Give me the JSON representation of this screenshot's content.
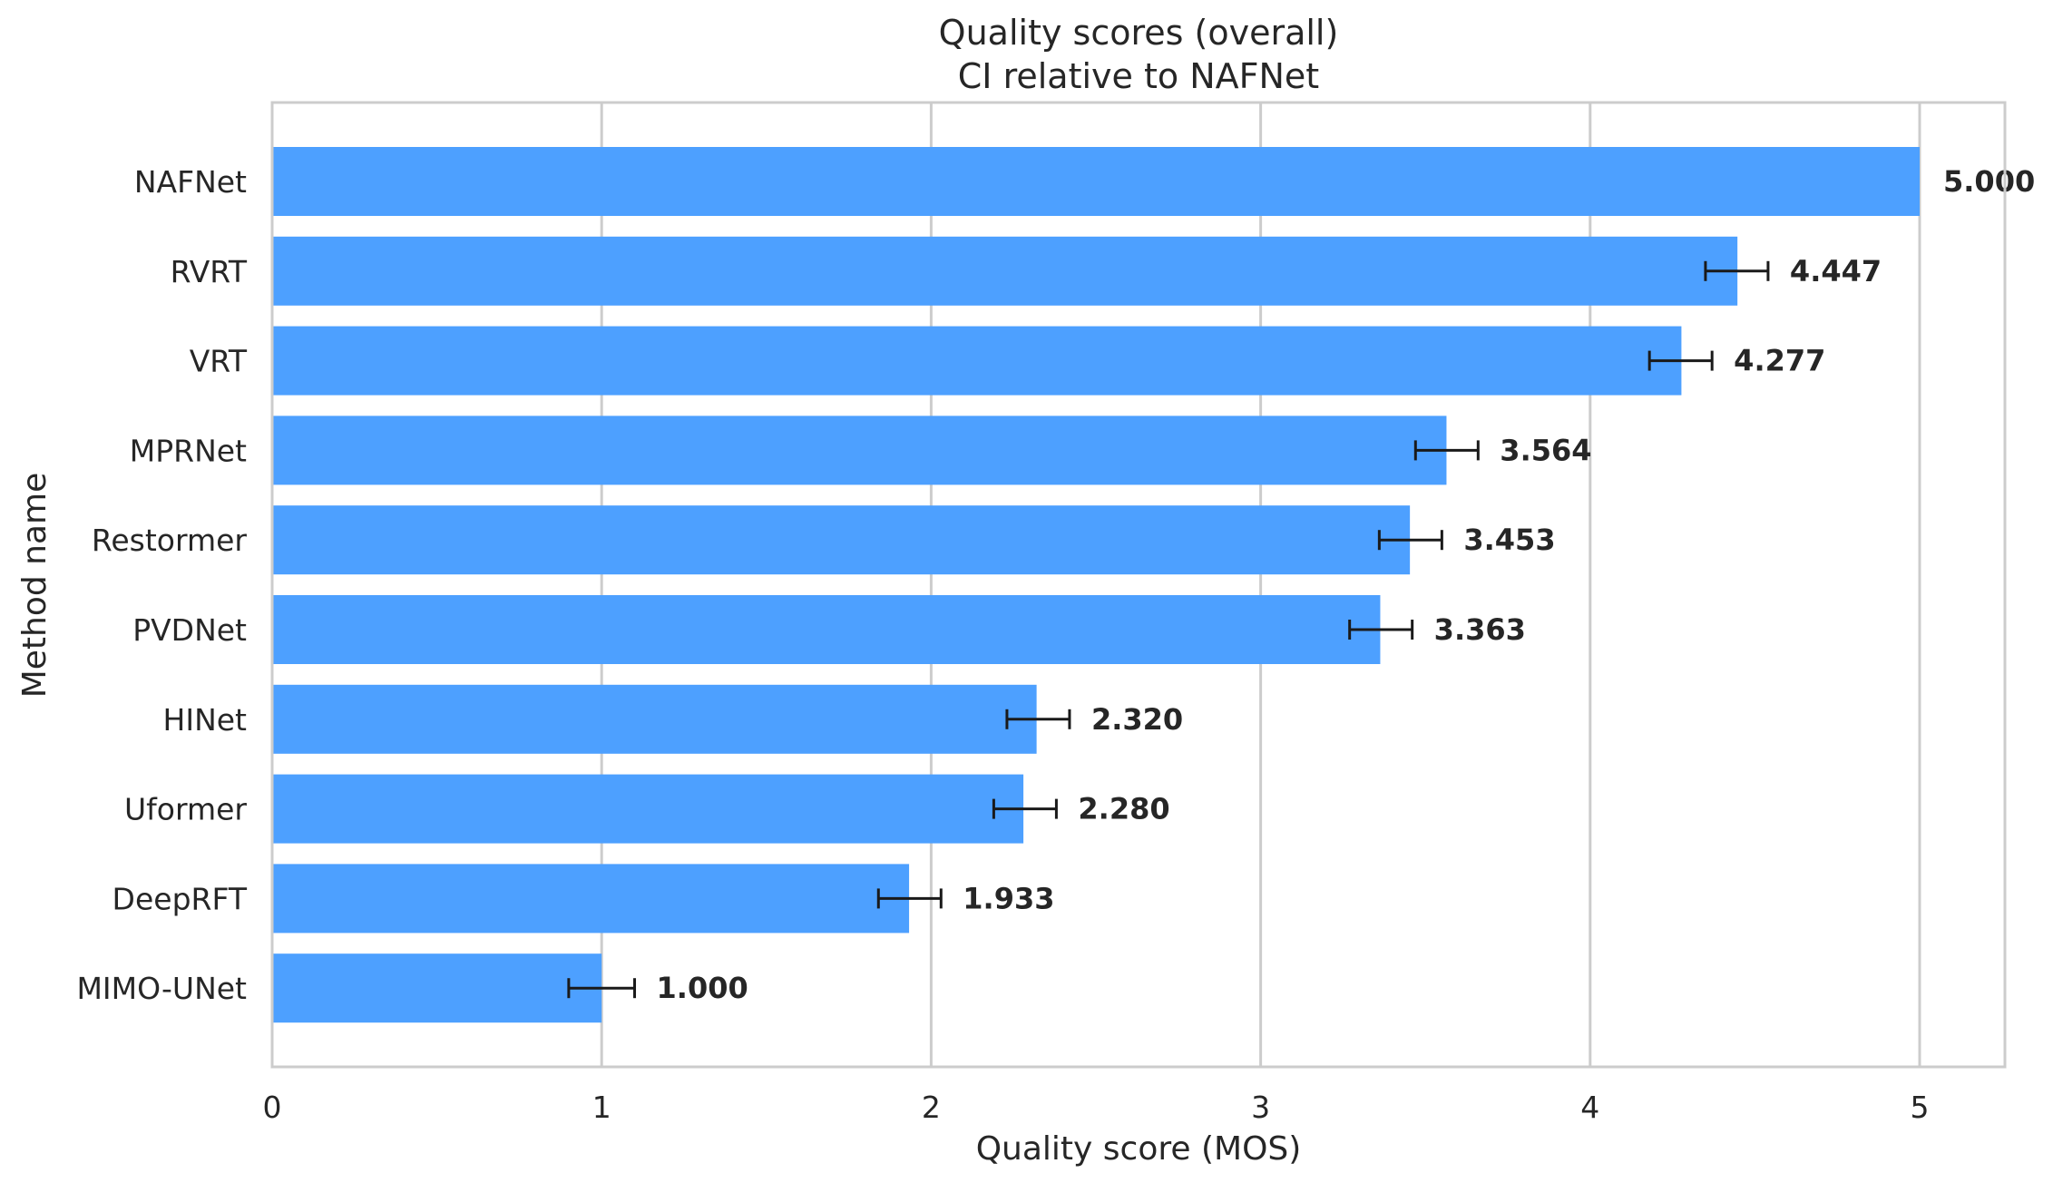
{
  "chart_data": {
    "type": "bar",
    "orientation": "horizontal",
    "title": "Quality scores (overall)",
    "subtitle": "CI relative to NAFNet",
    "xlabel": "Quality score (MOS)",
    "ylabel": "Method name",
    "xlim": [
      0,
      5.25
    ],
    "xticks": [
      0,
      1,
      2,
      3,
      4,
      5
    ],
    "grid": true,
    "bar_color": "#4da0ff",
    "categories": [
      "NAFNet",
      "RVRT",
      "VRT",
      "MPRNet",
      "Restormer",
      "PVDNet",
      "HINet",
      "Uformer",
      "DeepRFT",
      "MIMO-UNet"
    ],
    "values": [
      5.0,
      4.447,
      4.277,
      3.564,
      3.453,
      3.363,
      2.32,
      2.28,
      1.933,
      1.0
    ],
    "value_labels": [
      "5.000",
      "4.447",
      "4.277",
      "3.564",
      "3.453",
      "3.363",
      "2.320",
      "2.280",
      "1.933",
      "1.000"
    ],
    "ci_low": [
      null,
      4.35,
      4.18,
      3.47,
      3.36,
      3.27,
      2.23,
      2.19,
      1.84,
      0.9
    ],
    "ci_high": [
      null,
      4.54,
      4.37,
      3.66,
      3.55,
      3.46,
      2.42,
      2.38,
      2.03,
      1.1
    ]
  }
}
